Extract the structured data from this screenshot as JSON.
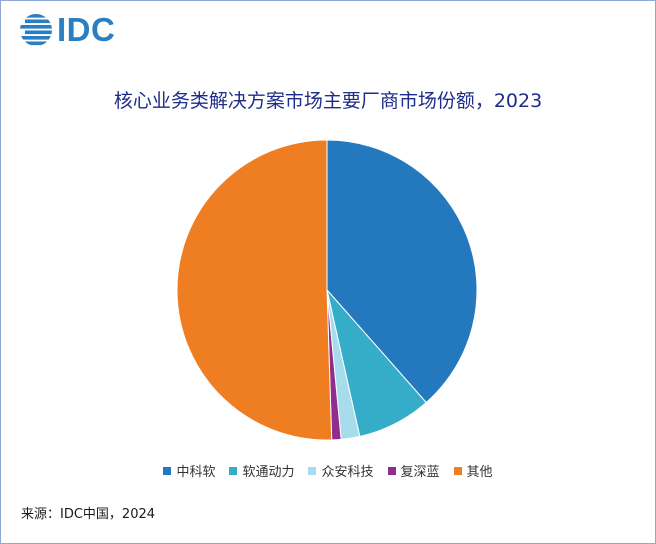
{
  "brand": {
    "logo_text": "IDC",
    "logo_color": "#2a7ec2"
  },
  "chart_data": {
    "type": "pie",
    "title": "核心业务类解决方案市场主要厂商市场份额，2023",
    "series": [
      {
        "name": "中科软",
        "value": 38.5,
        "color": "#2479be"
      },
      {
        "name": "软通动力",
        "value": 8.0,
        "color": "#35adc8"
      },
      {
        "name": "众安科技",
        "value": 2.0,
        "color": "#a6dcec"
      },
      {
        "name": "复深蓝",
        "value": 1.0,
        "color": "#8f2e8d"
      },
      {
        "name": "其他",
        "value": 50.5,
        "color": "#ef7d22"
      }
    ],
    "legend_position": "bottom"
  },
  "source": "来源：IDC中国，2024"
}
